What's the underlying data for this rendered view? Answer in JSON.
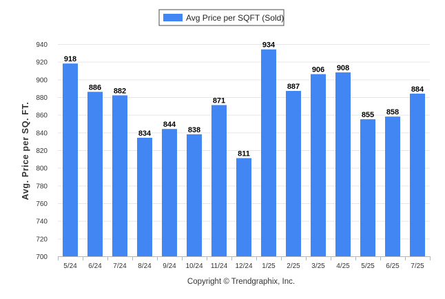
{
  "legend": {
    "label": "Avg Price per SQFT (Sold)",
    "swatch_color": "#4286f4"
  },
  "footer": {
    "copyright": "Copyright © Trendgraphix, Inc."
  },
  "chart_data": {
    "type": "bar",
    "ylabel": "Avg. Price per SQ. FT.",
    "xlabel": "",
    "categories": [
      "5/24",
      "6/24",
      "7/24",
      "8/24",
      "9/24",
      "10/24",
      "11/24",
      "12/24",
      "1/25",
      "2/25",
      "3/25",
      "4/25",
      "5/25",
      "6/25",
      "7/25"
    ],
    "series": [
      {
        "name": "Avg Price per SQFT (Sold)",
        "values": [
          918,
          886,
          882,
          834,
          844,
          838,
          871,
          811,
          934,
          887,
          906,
          908,
          855,
          858,
          884
        ],
        "color": "#4286f4"
      }
    ],
    "ylim": [
      700,
      940
    ],
    "yticks": [
      700,
      720,
      740,
      760,
      780,
      800,
      820,
      840,
      860,
      880,
      900,
      920,
      940
    ],
    "grid": true,
    "legend_position": "top-center",
    "data_labels": true
  }
}
